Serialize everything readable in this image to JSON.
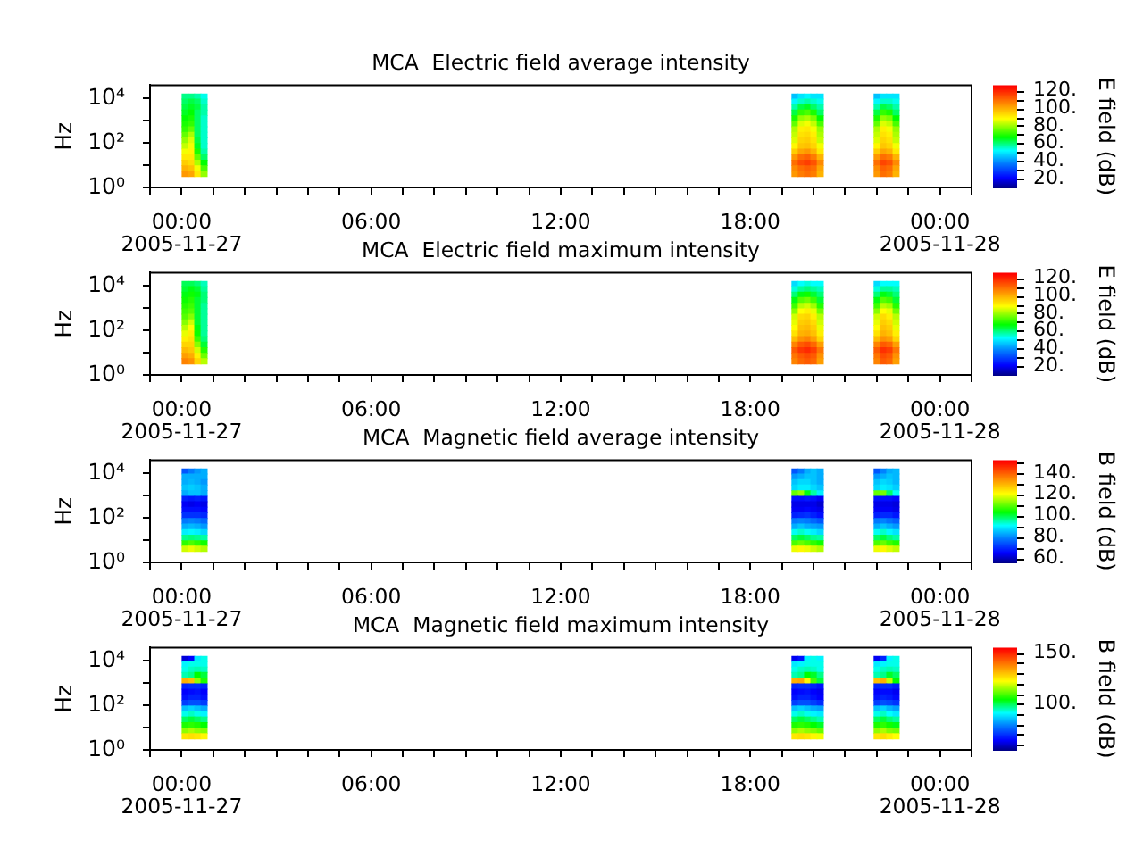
{
  "chart_data": [
    {
      "type": "heatmap",
      "title": "MCA  Electric field average intensity",
      "ylabel": "Hz",
      "clabel": "E field (dB)",
      "x": [
        0.1,
        0.3,
        0.5,
        0.7,
        0.9,
        19.2,
        19.4,
        19.6,
        19.8,
        20.0,
        20.2,
        20.4,
        21.8,
        22.0,
        22.2,
        22.4,
        22.6,
        22.8
      ],
      "y": [
        13000,
        7500,
        4200,
        2400,
        1300,
        750,
        420,
        240,
        130,
        75,
        42,
        24,
        13,
        7.5,
        4.2
      ],
      "cells": [
        [
          60,
          60,
          58,
          54,
          null,
          null,
          46,
          50,
          52,
          50,
          50,
          null,
          null,
          46,
          50,
          50,
          50,
          null
        ],
        [
          62,
          64,
          62,
          56,
          null,
          null,
          52,
          56,
          58,
          56,
          54,
          null,
          null,
          52,
          56,
          56,
          54,
          null
        ],
        [
          64,
          66,
          64,
          58,
          null,
          null,
          58,
          64,
          66,
          62,
          58,
          null,
          null,
          58,
          64,
          62,
          58,
          null
        ],
        [
          66,
          68,
          62,
          58,
          null,
          null,
          64,
          72,
          74,
          70,
          62,
          null,
          null,
          64,
          72,
          70,
          62,
          null
        ],
        [
          68,
          70,
          62,
          56,
          null,
          null,
          70,
          80,
          82,
          78,
          68,
          null,
          null,
          70,
          80,
          78,
          68,
          null
        ],
        [
          70,
          72,
          62,
          56,
          null,
          null,
          76,
          86,
          88,
          84,
          74,
          null,
          null,
          76,
          86,
          84,
          74,
          null
        ],
        [
          72,
          76,
          62,
          56,
          null,
          null,
          82,
          91,
          92,
          88,
          80,
          null,
          null,
          82,
          91,
          88,
          80,
          null
        ],
        [
          76,
          82,
          62,
          56,
          null,
          null,
          84,
          93,
          94,
          91,
          82,
          null,
          null,
          84,
          93,
          91,
          82,
          null
        ],
        [
          80,
          86,
          64,
          56,
          null,
          null,
          86,
          95,
          96,
          93,
          84,
          null,
          null,
          86,
          95,
          93,
          84,
          null
        ],
        [
          84,
          88,
          66,
          56,
          null,
          null,
          90,
          97,
          98,
          95,
          88,
          null,
          null,
          90,
          97,
          95,
          88,
          null
        ],
        [
          88,
          90,
          70,
          58,
          null,
          null,
          96,
          102,
          104,
          100,
          92,
          null,
          null,
          96,
          102,
          100,
          92,
          null
        ],
        [
          92,
          92,
          76,
          62,
          null,
          null,
          104,
          110,
          112,
          108,
          100,
          null,
          null,
          104,
          110,
          108,
          100,
          null
        ],
        [
          96,
          94,
          82,
          68,
          null,
          null,
          110,
          115,
          117,
          114,
          106,
          null,
          null,
          110,
          116,
          114,
          106,
          null
        ],
        [
          100,
          98,
          88,
          74,
          null,
          null,
          106,
          110,
          112,
          110,
          102,
          null,
          null,
          106,
          112,
          110,
          102,
          null
        ],
        [
          104,
          102,
          92,
          80,
          null,
          null,
          104,
          108,
          110,
          108,
          100,
          null,
          null,
          104,
          110,
          108,
          100,
          null
        ]
      ],
      "xlim": [
        -1,
        25
      ],
      "xticks": [
        {
          "value": -1,
          "label": null
        },
        {
          "value": 0,
          "label": "00:00\n2005-11-27"
        },
        {
          "value": 1,
          "label": null
        },
        {
          "value": 2,
          "label": null
        },
        {
          "value": 3,
          "label": null
        },
        {
          "value": 4,
          "label": null
        },
        {
          "value": 5,
          "label": null
        },
        {
          "value": 6,
          "label": "06:00"
        },
        {
          "value": 7,
          "label": null
        },
        {
          "value": 8,
          "label": null
        },
        {
          "value": 9,
          "label": null
        },
        {
          "value": 10,
          "label": null
        },
        {
          "value": 11,
          "label": null
        },
        {
          "value": 12,
          "label": "12:00"
        },
        {
          "value": 13,
          "label": null
        },
        {
          "value": 14,
          "label": null
        },
        {
          "value": 15,
          "label": null
        },
        {
          "value": 16,
          "label": null
        },
        {
          "value": 17,
          "label": null
        },
        {
          "value": 18,
          "label": "18:00"
        },
        {
          "value": 19,
          "label": null
        },
        {
          "value": 20,
          "label": null
        },
        {
          "value": 21,
          "label": null
        },
        {
          "value": 22,
          "label": null
        },
        {
          "value": 23,
          "label": null
        },
        {
          "value": 24,
          "label": "00:00\n2005-11-28"
        },
        {
          "value": 25,
          "label": null
        }
      ],
      "ylim": [
        1,
        40000
      ],
      "yticks": [
        {
          "value": 1,
          "label": "10⁰"
        },
        {
          "value": 10,
          "label": null
        },
        {
          "value": 100,
          "label": "10²"
        },
        {
          "value": 1000,
          "label": null
        },
        {
          "value": 10000,
          "label": "10⁴"
        }
      ],
      "log": "y",
      "clim": [
        10,
        126
      ],
      "cticks": [
        {
          "value": 20,
          "label": "20."
        },
        {
          "value": 30,
          "label": null
        },
        {
          "value": 40,
          "label": "40."
        },
        {
          "value": 50,
          "label": null
        },
        {
          "value": 60,
          "label": "60."
        },
        {
          "value": 70,
          "label": null
        },
        {
          "value": 80,
          "label": "80."
        },
        {
          "value": 90,
          "label": null
        },
        {
          "value": 100,
          "label": "100."
        },
        {
          "value": 110,
          "label": null
        },
        {
          "value": 120,
          "label": "120."
        }
      ]
    },
    {
      "type": "heatmap",
      "title": "MCA  Electric field maximum intensity",
      "ylabel": "Hz",
      "clabel": "E field (dB)",
      "x": [
        0.1,
        0.3,
        0.5,
        0.7,
        0.9,
        19.2,
        19.4,
        19.6,
        19.8,
        20.0,
        20.2,
        20.4,
        21.8,
        22.0,
        22.2,
        22.4,
        22.6,
        22.8
      ],
      "y": [
        13000,
        7500,
        4200,
        2400,
        1300,
        750,
        420,
        240,
        130,
        75,
        42,
        24,
        13,
        7.5,
        4.2
      ],
      "cells": [
        [
          63,
          63,
          61,
          57,
          null,
          null,
          49,
          53,
          55,
          53,
          53,
          null,
          null,
          49,
          53,
          53,
          53,
          null
        ],
        [
          65,
          67,
          65,
          59,
          null,
          null,
          55,
          59,
          61,
          59,
          57,
          null,
          null,
          55,
          59,
          59,
          57,
          null
        ],
        [
          67,
          69,
          67,
          61,
          null,
          null,
          61,
          67,
          69,
          65,
          61,
          null,
          null,
          61,
          67,
          65,
          61,
          null
        ],
        [
          69,
          71,
          65,
          61,
          null,
          null,
          67,
          75,
          77,
          73,
          65,
          null,
          null,
          67,
          75,
          73,
          65,
          null
        ],
        [
          71,
          73,
          65,
          59,
          null,
          null,
          73,
          83,
          85,
          81,
          71,
          null,
          null,
          73,
          83,
          81,
          71,
          null
        ],
        [
          73,
          75,
          65,
          59,
          null,
          null,
          79,
          89,
          91,
          87,
          77,
          null,
          null,
          79,
          89,
          87,
          77,
          null
        ],
        [
          75,
          79,
          65,
          59,
          null,
          null,
          85,
          94,
          95,
          91,
          83,
          null,
          null,
          85,
          94,
          91,
          83,
          null
        ],
        [
          79,
          85,
          65,
          59,
          null,
          null,
          87,
          96,
          97,
          94,
          85,
          null,
          null,
          87,
          96,
          94,
          85,
          null
        ],
        [
          83,
          89,
          67,
          59,
          null,
          null,
          89,
          98,
          99,
          96,
          87,
          null,
          null,
          89,
          98,
          96,
          87,
          null
        ],
        [
          87,
          91,
          69,
          59,
          null,
          null,
          93,
          100,
          101,
          98,
          91,
          null,
          null,
          93,
          100,
          98,
          91,
          null
        ],
        [
          91,
          93,
          73,
          61,
          null,
          null,
          99,
          105,
          107,
          103,
          95,
          null,
          null,
          99,
          105,
          103,
          95,
          null
        ],
        [
          95,
          95,
          79,
          65,
          null,
          null,
          107,
          113,
          115,
          111,
          103,
          null,
          null,
          107,
          113,
          111,
          103,
          null
        ],
        [
          99,
          97,
          85,
          71,
          null,
          null,
          113,
          118,
          120,
          117,
          109,
          null,
          null,
          113,
          119,
          117,
          109,
          null
        ],
        [
          103,
          101,
          91,
          77,
          null,
          null,
          109,
          113,
          115,
          113,
          105,
          null,
          null,
          109,
          115,
          113,
          105,
          null
        ],
        [
          107,
          105,
          95,
          83,
          null,
          null,
          107,
          111,
          113,
          111,
          103,
          null,
          null,
          107,
          113,
          111,
          103,
          null
        ]
      ],
      "xlim": [
        -1,
        25
      ],
      "xticks": [
        {
          "value": -1,
          "label": null
        },
        {
          "value": 0,
          "label": "00:00\n2005-11-27"
        },
        {
          "value": 1,
          "label": null
        },
        {
          "value": 2,
          "label": null
        },
        {
          "value": 3,
          "label": null
        },
        {
          "value": 4,
          "label": null
        },
        {
          "value": 5,
          "label": null
        },
        {
          "value": 6,
          "label": "06:00"
        },
        {
          "value": 7,
          "label": null
        },
        {
          "value": 8,
          "label": null
        },
        {
          "value": 9,
          "label": null
        },
        {
          "value": 10,
          "label": null
        },
        {
          "value": 11,
          "label": null
        },
        {
          "value": 12,
          "label": "12:00"
        },
        {
          "value": 13,
          "label": null
        },
        {
          "value": 14,
          "label": null
        },
        {
          "value": 15,
          "label": null
        },
        {
          "value": 16,
          "label": null
        },
        {
          "value": 17,
          "label": null
        },
        {
          "value": 18,
          "label": "18:00"
        },
        {
          "value": 19,
          "label": null
        },
        {
          "value": 20,
          "label": null
        },
        {
          "value": 21,
          "label": null
        },
        {
          "value": 22,
          "label": null
        },
        {
          "value": 23,
          "label": null
        },
        {
          "value": 24,
          "label": "00:00\n2005-11-28"
        },
        {
          "value": 25,
          "label": null
        }
      ],
      "ylim": [
        1,
        40000
      ],
      "yticks": [
        {
          "value": 1,
          "label": "10⁰"
        },
        {
          "value": 10,
          "label": null
        },
        {
          "value": 100,
          "label": "10²"
        },
        {
          "value": 1000,
          "label": null
        },
        {
          "value": 10000,
          "label": "10⁴"
        }
      ],
      "log": "y",
      "clim": [
        10,
        126
      ],
      "cticks": [
        {
          "value": 20,
          "label": "20."
        },
        {
          "value": 30,
          "label": null
        },
        {
          "value": 40,
          "label": "40."
        },
        {
          "value": 50,
          "label": null
        },
        {
          "value": 60,
          "label": "60."
        },
        {
          "value": 70,
          "label": null
        },
        {
          "value": 80,
          "label": "80."
        },
        {
          "value": 90,
          "label": null
        },
        {
          "value": 100,
          "label": "100."
        },
        {
          "value": 110,
          "label": null
        },
        {
          "value": 120,
          "label": "120."
        }
      ]
    },
    {
      "type": "heatmap",
      "title": "MCA  Magnetic field average intensity",
      "ylabel": "Hz",
      "clabel": "B field (dB)",
      "x": [
        0.1,
        0.3,
        0.5,
        0.7,
        0.9,
        19.2,
        19.4,
        19.6,
        19.8,
        20.0,
        20.2,
        20.4,
        21.8,
        22.0,
        22.2,
        22.4,
        22.6,
        22.8
      ],
      "y": [
        13000,
        7500,
        4200,
        2400,
        1300,
        750,
        420,
        240,
        130,
        75,
        42,
        24,
        13,
        7.5,
        4.2
      ],
      "cells": [
        [
          75,
          79,
          82,
          84,
          null,
          null,
          75,
          79,
          84,
          86,
          84,
          null,
          null,
          75,
          80,
          84,
          85,
          null
        ],
        [
          84,
          84,
          84,
          84,
          null,
          null,
          82,
          84,
          86,
          86,
          84,
          null,
          null,
          82,
          84,
          86,
          85,
          null
        ],
        [
          84,
          85,
          84,
          82,
          null,
          null,
          86,
          88,
          88,
          86,
          84,
          null,
          null,
          86,
          88,
          87,
          85,
          null
        ],
        [
          86,
          87,
          86,
          84,
          null,
          null,
          88,
          90,
          90,
          88,
          86,
          null,
          null,
          88,
          90,
          89,
          87,
          null
        ],
        [
          84,
          86,
          86,
          84,
          null,
          null,
          111,
          114,
          103,
          96,
          90,
          null,
          null,
          111,
          112,
          99,
          92,
          null
        ],
        [
          69,
          68,
          69,
          68,
          null,
          null,
          67,
          67,
          68,
          67,
          65,
          null,
          null,
          67,
          67,
          67,
          66,
          null
        ],
        [
          65,
          64,
          65,
          64,
          null,
          null,
          64,
          64,
          64,
          64,
          62,
          null,
          null,
          64,
          64,
          64,
          63,
          null
        ],
        [
          67,
          67,
          67,
          66,
          null,
          null,
          65,
          65,
          66,
          65,
          64,
          null,
          null,
          65,
          65,
          65,
          64,
          null
        ],
        [
          71,
          71,
          71,
          70,
          null,
          null,
          69,
          70,
          71,
          69,
          67,
          null,
          null,
          69,
          70,
          70,
          68,
          null
        ],
        [
          79,
          80,
          79,
          77,
          null,
          null,
          79,
          80,
          79,
          77,
          75,
          null,
          null,
          79,
          80,
          78,
          76,
          null
        ],
        [
          84,
          85,
          84,
          82,
          null,
          null,
          84,
          86,
          84,
          83,
          82,
          null,
          null,
          84,
          86,
          84,
          82,
          null
        ],
        [
          90,
          91,
          90,
          88,
          null,
          null,
          92,
          94,
          92,
          90,
          88,
          null,
          null,
          92,
          94,
          91,
          89,
          null
        ],
        [
          97,
          98,
          97,
          96,
          null,
          null,
          99,
          101,
          99,
          97,
          96,
          null,
          null,
          99,
          101,
          98,
          96,
          null
        ],
        [
          107,
          109,
          107,
          105,
          null,
          null,
          109,
          111,
          109,
          107,
          105,
          null,
          null,
          109,
          111,
          108,
          106,
          null
        ],
        [
          118,
          120,
          118,
          116,
          null,
          null,
          120,
          122,
          120,
          118,
          116,
          null,
          null,
          120,
          122,
          119,
          117,
          null
        ]
      ],
      "xlim": [
        -1,
        25
      ],
      "xticks": [
        {
          "value": -1,
          "label": null
        },
        {
          "value": 0,
          "label": "00:00\n2005-11-27"
        },
        {
          "value": 1,
          "label": null
        },
        {
          "value": 2,
          "label": null
        },
        {
          "value": 3,
          "label": null
        },
        {
          "value": 4,
          "label": null
        },
        {
          "value": 5,
          "label": null
        },
        {
          "value": 6,
          "label": "06:00"
        },
        {
          "value": 7,
          "label": null
        },
        {
          "value": 8,
          "label": null
        },
        {
          "value": 9,
          "label": null
        },
        {
          "value": 10,
          "label": null
        },
        {
          "value": 11,
          "label": null
        },
        {
          "value": 12,
          "label": "12:00"
        },
        {
          "value": 13,
          "label": null
        },
        {
          "value": 14,
          "label": null
        },
        {
          "value": 15,
          "label": null
        },
        {
          "value": 16,
          "label": null
        },
        {
          "value": 17,
          "label": null
        },
        {
          "value": 18,
          "label": "18:00"
        },
        {
          "value": 19,
          "label": null
        },
        {
          "value": 20,
          "label": null
        },
        {
          "value": 21,
          "label": null
        },
        {
          "value": 22,
          "label": null
        },
        {
          "value": 23,
          "label": null
        },
        {
          "value": 24,
          "label": "00:00\n2005-11-28"
        },
        {
          "value": 25,
          "label": null
        }
      ],
      "ylim": [
        1,
        40000
      ],
      "yticks": [
        {
          "value": 1,
          "label": "10⁰"
        },
        {
          "value": 10,
          "label": null
        },
        {
          "value": 100,
          "label": "10²"
        },
        {
          "value": 1000,
          "label": null
        },
        {
          "value": 10000,
          "label": "10⁴"
        }
      ],
      "log": "y",
      "clim": [
        56,
        152
      ],
      "cticks": [
        {
          "value": 60,
          "label": "60."
        },
        {
          "value": 70,
          "label": null
        },
        {
          "value": 80,
          "label": "80."
        },
        {
          "value": 90,
          "label": null
        },
        {
          "value": 100,
          "label": "100."
        },
        {
          "value": 110,
          "label": null
        },
        {
          "value": 120,
          "label": "120."
        },
        {
          "value": 130,
          "label": null
        },
        {
          "value": 140,
          "label": "140."
        },
        {
          "value": 150,
          "label": null
        }
      ]
    },
    {
      "type": "heatmap",
      "title": "MCA  Magnetic field maximum intensity",
      "ylabel": "Hz",
      "clabel": "B field (dB)",
      "x": [
        0.1,
        0.3,
        0.5,
        0.7,
        0.9,
        19.2,
        19.4,
        19.6,
        19.8,
        20.0,
        20.2,
        20.4,
        21.8,
        22.0,
        22.2,
        22.4,
        22.6,
        22.8
      ],
      "y": [
        13000,
        7500,
        4200,
        2400,
        1300,
        750,
        420,
        240,
        130,
        75,
        42,
        24,
        13,
        7.5,
        4.2
      ],
      "cells": [
        [
          62,
          65,
          90,
          93,
          null,
          null,
          64,
          67,
          91,
          93,
          91,
          null,
          null,
          64,
          69,
          91,
          93,
          null
        ],
        [
          91,
          93,
          93,
          93,
          null,
          null,
          90,
          91,
          93,
          93,
          93,
          null,
          null,
          90,
          91,
          93,
          93,
          null
        ],
        [
          93,
          95,
          96,
          95,
          null,
          null,
          93,
          95,
          96,
          95,
          93,
          null,
          null,
          93,
          95,
          96,
          95,
          null
        ],
        [
          96,
          98,
          105,
          102,
          null,
          null,
          96,
          98,
          105,
          103,
          98,
          null,
          null,
          96,
          98,
          103,
          100,
          null
        ],
        [
          133,
          131,
          115,
          107,
          null,
          null,
          133,
          134,
          124,
          110,
          102,
          null,
          null,
          131,
          133,
          119,
          105,
          null
        ],
        [
          69,
          70,
          70,
          69,
          null,
          null,
          69,
          70,
          70,
          69,
          67,
          null,
          null,
          69,
          70,
          70,
          68,
          null
        ],
        [
          65,
          66,
          67,
          65,
          null,
          null,
          65,
          66,
          67,
          65,
          64,
          null,
          null,
          65,
          66,
          66,
          64,
          null
        ],
        [
          67,
          69,
          69,
          67,
          null,
          null,
          67,
          69,
          69,
          67,
          65,
          null,
          null,
          67,
          69,
          68,
          66,
          null
        ],
        [
          72,
          74,
          74,
          72,
          null,
          null,
          72,
          74,
          74,
          72,
          70,
          null,
          null,
          72,
          74,
          73,
          71,
          null
        ],
        [
          86,
          88,
          86,
          84,
          null,
          null,
          86,
          88,
          86,
          84,
          83,
          null,
          null,
          86,
          88,
          85,
          83,
          null
        ],
        [
          93,
          95,
          93,
          91,
          null,
          null,
          93,
          95,
          93,
          91,
          90,
          null,
          null,
          93,
          95,
          92,
          90,
          null
        ],
        [
          100,
          102,
          100,
          98,
          null,
          null,
          100,
          102,
          100,
          98,
          96,
          null,
          null,
          100,
          102,
          99,
          97,
          null
        ],
        [
          107,
          108,
          107,
          105,
          null,
          null,
          107,
          108,
          107,
          105,
          103,
          null,
          null,
          107,
          108,
          106,
          104,
          null
        ],
        [
          115,
          117,
          115,
          114,
          null,
          null,
          115,
          117,
          115,
          114,
          112,
          null,
          null,
          115,
          117,
          114,
          113,
          null
        ],
        [
          126,
          127,
          126,
          124,
          null,
          null,
          126,
          127,
          126,
          124,
          122,
          null,
          null,
          126,
          127,
          125,
          123,
          null
        ]
      ],
      "xlim": [
        -1,
        25
      ],
      "xticks": [
        {
          "value": -1,
          "label": null
        },
        {
          "value": 0,
          "label": "00:00\n2005-11-27"
        },
        {
          "value": 1,
          "label": null
        },
        {
          "value": 2,
          "label": null
        },
        {
          "value": 3,
          "label": null
        },
        {
          "value": 4,
          "label": null
        },
        {
          "value": 5,
          "label": null
        },
        {
          "value": 6,
          "label": "06:00"
        },
        {
          "value": 7,
          "label": null
        },
        {
          "value": 8,
          "label": null
        },
        {
          "value": 9,
          "label": null
        },
        {
          "value": 10,
          "label": null
        },
        {
          "value": 11,
          "label": null
        },
        {
          "value": 12,
          "label": "12:00"
        },
        {
          "value": 13,
          "label": null
        },
        {
          "value": 14,
          "label": null
        },
        {
          "value": 15,
          "label": null
        },
        {
          "value": 16,
          "label": null
        },
        {
          "value": 17,
          "label": null
        },
        {
          "value": 18,
          "label": "18:00"
        },
        {
          "value": 19,
          "label": null
        },
        {
          "value": 20,
          "label": null
        },
        {
          "value": 21,
          "label": null
        },
        {
          "value": 22,
          "label": null
        },
        {
          "value": 23,
          "label": null
        },
        {
          "value": 24,
          "label": "00:00\n2005-11-28"
        },
        {
          "value": 25,
          "label": null
        }
      ],
      "ylim": [
        1,
        40000
      ],
      "yticks": [
        {
          "value": 1,
          "label": "10⁰"
        },
        {
          "value": 10,
          "label": null
        },
        {
          "value": 100,
          "label": "10²"
        },
        {
          "value": 1000,
          "label": null
        },
        {
          "value": 10000,
          "label": "10⁴"
        }
      ],
      "log": "y",
      "clim": [
        55,
        155
      ],
      "cticks": [
        {
          "value": 60,
          "label": null
        },
        {
          "value": 70,
          "label": null
        },
        {
          "value": 80,
          "label": null
        },
        {
          "value": 90,
          "label": null
        },
        {
          "value": 100,
          "label": "100."
        },
        {
          "value": 110,
          "label": null
        },
        {
          "value": 120,
          "label": null
        },
        {
          "value": 130,
          "label": null
        },
        {
          "value": 140,
          "label": null
        },
        {
          "value": 150,
          "label": "150."
        }
      ]
    }
  ]
}
